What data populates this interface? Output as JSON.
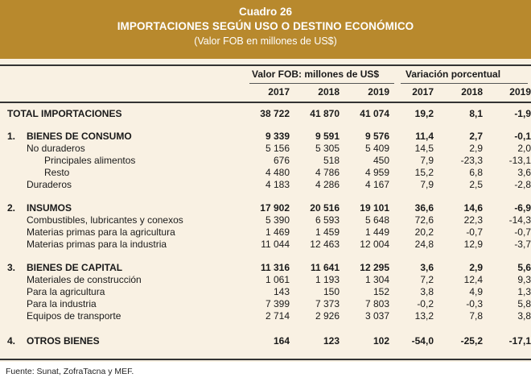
{
  "header": {
    "number": "Cuadro 26",
    "title": "IMPORTACIONES SEGÚN USO O DESTINO ECONÓMICO",
    "subtitle": "(Valor FOB en millones de US$)"
  },
  "columns": {
    "group_fob": "Valor FOB: millones de US$",
    "group_var": "Variación porcentual",
    "years": [
      "2017",
      "2018",
      "2019",
      "2017",
      "2018",
      "2019"
    ]
  },
  "rows": [
    {
      "num": "",
      "label": "TOTAL IMPORTACIONES",
      "v": [
        "38 722",
        "41 870",
        "41 074",
        "19,2",
        "8,1",
        "-1,9"
      ]
    },
    {
      "num": "1.",
      "label": "BIENES DE CONSUMO",
      "v": [
        "9 339",
        "9 591",
        "9 576",
        "11,4",
        "2,7",
        "-0,1"
      ]
    },
    {
      "num": "",
      "label": "No duraderos",
      "v": [
        "5 156",
        "5 305",
        "5 409",
        "14,5",
        "2,9",
        "2,0"
      ]
    },
    {
      "num": "",
      "label": "Principales alimentos",
      "v": [
        "676",
        "518",
        "450",
        "7,9",
        "-23,3",
        "-13,1"
      ]
    },
    {
      "num": "",
      "label": "Resto",
      "v": [
        "4 480",
        "4 786",
        "4 959",
        "15,2",
        "6,8",
        "3,6"
      ]
    },
    {
      "num": "",
      "label": "Duraderos",
      "v": [
        "4 183",
        "4 286",
        "4 167",
        "7,9",
        "2,5",
        "-2,8"
      ]
    },
    {
      "num": "2.",
      "label": "INSUMOS",
      "v": [
        "17 902",
        "20 516",
        "19 101",
        "36,6",
        "14,6",
        "-6,9"
      ]
    },
    {
      "num": "",
      "label": "Combustibles, lubricantes y conexos",
      "v": [
        "5 390",
        "6 593",
        "5 648",
        "72,6",
        "22,3",
        "-14,3"
      ]
    },
    {
      "num": "",
      "label": "Materias primas para la agricultura",
      "v": [
        "1 469",
        "1 459",
        "1 449",
        "20,2",
        "-0,7",
        "-0,7"
      ]
    },
    {
      "num": "",
      "label": "Materias primas para la industria",
      "v": [
        "11 044",
        "12 463",
        "12 004",
        "24,8",
        "12,9",
        "-3,7"
      ]
    },
    {
      "num": "3.",
      "label": "BIENES DE CAPITAL",
      "v": [
        "11 316",
        "11 641",
        "12 295",
        "3,6",
        "2,9",
        "5,6"
      ]
    },
    {
      "num": "",
      "label": "Materiales de construcción",
      "v": [
        "1 061",
        "1 193",
        "1 304",
        "7,2",
        "12,4",
        "9,3"
      ]
    },
    {
      "num": "",
      "label": "Para la agricultura",
      "v": [
        "143",
        "150",
        "152",
        "3,8",
        "4,9",
        "1,3"
      ]
    },
    {
      "num": "",
      "label": "Para la industria",
      "v": [
        "7 399",
        "7 373",
        "7 803",
        "-0,2",
        "-0,3",
        "5,8"
      ]
    },
    {
      "num": "",
      "label": "Equipos de transporte",
      "v": [
        "2 714",
        "2 926",
        "3 037",
        "13,2",
        "7,8",
        "3,8"
      ]
    },
    {
      "num": "4.",
      "label": "OTROS BIENES",
      "v": [
        "164",
        "123",
        "102",
        "-54,0",
        "-25,2",
        "-17,1"
      ]
    }
  ],
  "footer": "Fuente: Sunat, ZofraTacna y MEF."
}
